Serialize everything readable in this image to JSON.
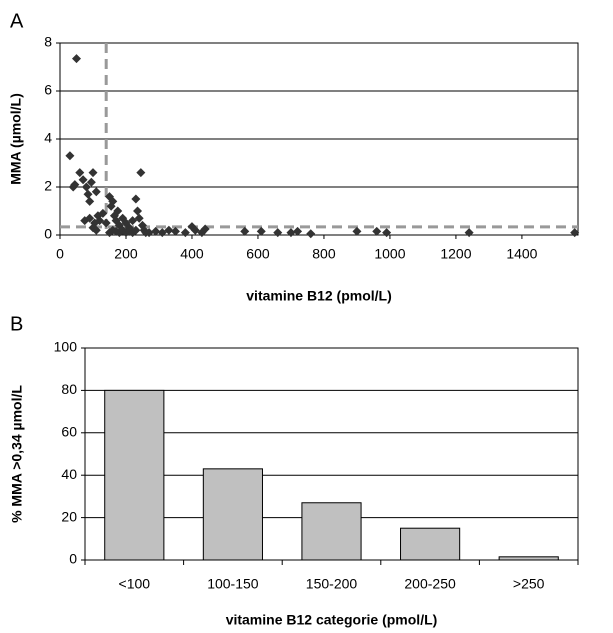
{
  "chart_data": [
    {
      "type": "scatter",
      "panel": "A",
      "x_label": "vitamine B12 (pmol/L)",
      "y_label": "MMA (µmol/L)",
      "color": "#333333",
      "x": [
        30,
        50,
        40,
        45,
        60,
        70,
        80,
        85,
        100,
        95,
        90,
        110,
        75,
        90,
        105,
        115,
        120,
        100,
        110,
        130,
        140,
        150,
        155,
        160,
        165,
        170,
        175,
        180,
        190,
        200,
        210,
        220,
        230,
        235,
        240,
        245,
        250,
        255,
        260,
        150,
        160,
        170,
        180,
        190,
        200,
        210,
        220,
        230,
        270,
        290,
        310,
        330,
        350,
        380,
        400,
        410,
        430,
        440,
        560,
        610,
        660,
        700,
        720,
        760,
        900,
        960,
        990,
        1240,
        1560
      ],
      "values": [
        3.3,
        7.35,
        2.0,
        2.1,
        2.6,
        2.3,
        2.0,
        1.7,
        2.6,
        2.2,
        1.4,
        1.8,
        0.6,
        0.7,
        0.5,
        0.8,
        0.6,
        0.3,
        0.2,
        0.9,
        0.5,
        1.6,
        1.2,
        1.4,
        0.8,
        0.6,
        1.0,
        0.4,
        0.7,
        0.5,
        0.3,
        0.6,
        1.5,
        1.0,
        0.7,
        2.6,
        0.4,
        0.2,
        0.1,
        0.1,
        0.2,
        0.15,
        0.1,
        0.2,
        0.1,
        0.15,
        0.1,
        0.2,
        0.1,
        0.15,
        0.1,
        0.2,
        0.15,
        0.1,
        0.35,
        0.2,
        0.1,
        0.25,
        0.15,
        0.15,
        0.1,
        0.1,
        0.15,
        0.05,
        0.15,
        0.15,
        0.1,
        0.1,
        0.1
      ],
      "x_threshold": 140,
      "y_threshold": 0.34,
      "xlim": [
        0,
        1570
      ],
      "xticks": [
        0,
        200,
        400,
        600,
        800,
        1000,
        1200,
        1400
      ],
      "ylim": [
        0,
        8
      ],
      "yticks": [
        0,
        2,
        4,
        6,
        8
      ],
      "grid": true
    },
    {
      "type": "bar",
      "panel": "B",
      "x_label": "vitamine B12 categorie (pmol/L)",
      "y_label": "% MMA >0,34 µmol/L",
      "color": "#c0c0c0",
      "categories": [
        "<100",
        "100-150",
        "150-200",
        "200-250",
        ">250"
      ],
      "values": [
        80,
        43,
        27,
        15,
        1.5
      ],
      "ylim": [
        0,
        100
      ],
      "yticks": [
        0,
        20,
        40,
        60,
        80,
        100
      ],
      "grid": true
    }
  ]
}
